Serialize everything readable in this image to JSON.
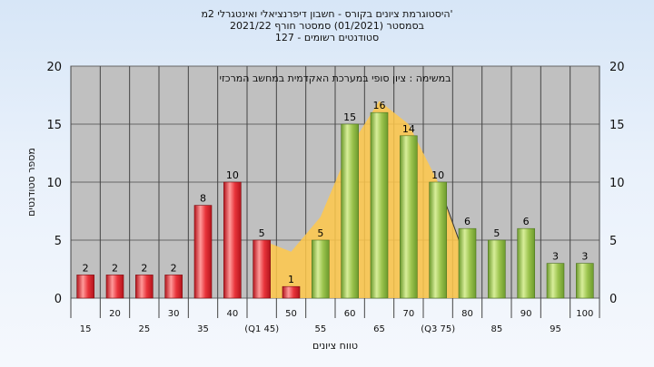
{
  "chart_data": {
    "type": "bar",
    "title_lines": [
      "'היסטוגרמת ציונים בקורס - חשבון דיפרנציאלי ואינטגרלי 2מ",
      "בסמסטר  (01/2021)  סמסטר חורף 2021/22",
      "סטודנטים רשומים - 127"
    ],
    "subtitle": "במשימה : ציון סופי במערכת האקדמית במחשב המרכזי",
    "xlabel": "טווח ציונים",
    "ylabel": "מספר סטודנטים",
    "ylim": [
      0,
      20
    ],
    "y_ticks": [
      0,
      5,
      10,
      15,
      20
    ],
    "grid": true,
    "categories": [
      "15",
      "20",
      "25",
      "30",
      "35",
      "40",
      "(Q1 45)",
      "50",
      "55",
      "60",
      "65",
      "70",
      "(Q3 75)",
      "80",
      "85",
      "90",
      "95",
      "100"
    ],
    "values": [
      2,
      2,
      2,
      2,
      8,
      10,
      5,
      1,
      5,
      15,
      16,
      14,
      10,
      6,
      5,
      6,
      3,
      3
    ],
    "bar_colors": [
      "red",
      "red",
      "red",
      "red",
      "red",
      "red",
      "red",
      "red",
      "green",
      "green",
      "green",
      "green",
      "green",
      "green",
      "green",
      "green",
      "green",
      "green"
    ],
    "colors": {
      "plot_bg": "#c0c0c0",
      "red_light": "#ff9a9a",
      "red": "#e8333a",
      "red_dark": "#b3141c",
      "green_light": "#d8ee9a",
      "green": "#9cc44e",
      "green_dark": "#6c9a2c",
      "area": "#ffc84a"
    },
    "area_curve": [
      {
        "x": "(Q1 45)",
        "y": 5
      },
      {
        "x": "50",
        "y": 4
      },
      {
        "x": "55",
        "y": 7
      },
      {
        "x": "60",
        "y": 13
      },
      {
        "x": "65",
        "y": 17
      },
      {
        "x": "70",
        "y": 15
      },
      {
        "x": "(Q3 75)",
        "y": 10
      },
      {
        "x": "80",
        "y": 3
      }
    ]
  }
}
